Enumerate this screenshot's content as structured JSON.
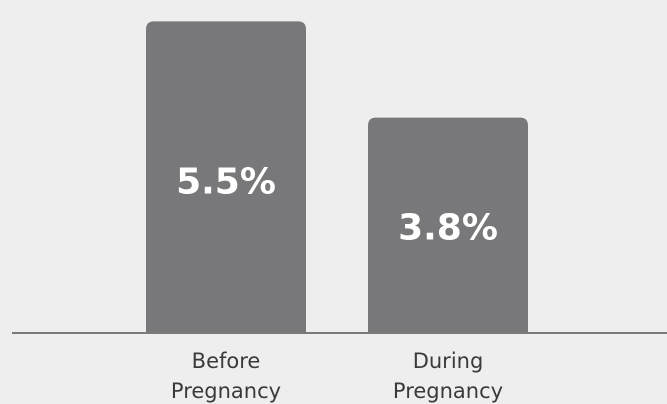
{
  "chart_data": {
    "type": "bar",
    "categories": [
      "Before Pregnancy",
      "During Pregnancy"
    ],
    "category_lines": [
      [
        "Before",
        "Pregnancy"
      ],
      [
        "During",
        "Pregnancy"
      ]
    ],
    "values": [
      5.5,
      3.8
    ],
    "value_labels": [
      "5.5%",
      "3.8%"
    ],
    "unit": "%",
    "title": "",
    "xlabel": "",
    "ylabel": "",
    "ylim": [
      0,
      5.7
    ],
    "grid": false,
    "legend": "none",
    "colors": {
      "bar": "#78787b",
      "baseline": "#7a7a7a",
      "value_text": "#ffffff",
      "category_text": "#3a3a3a",
      "background": "#eeeeee"
    }
  }
}
